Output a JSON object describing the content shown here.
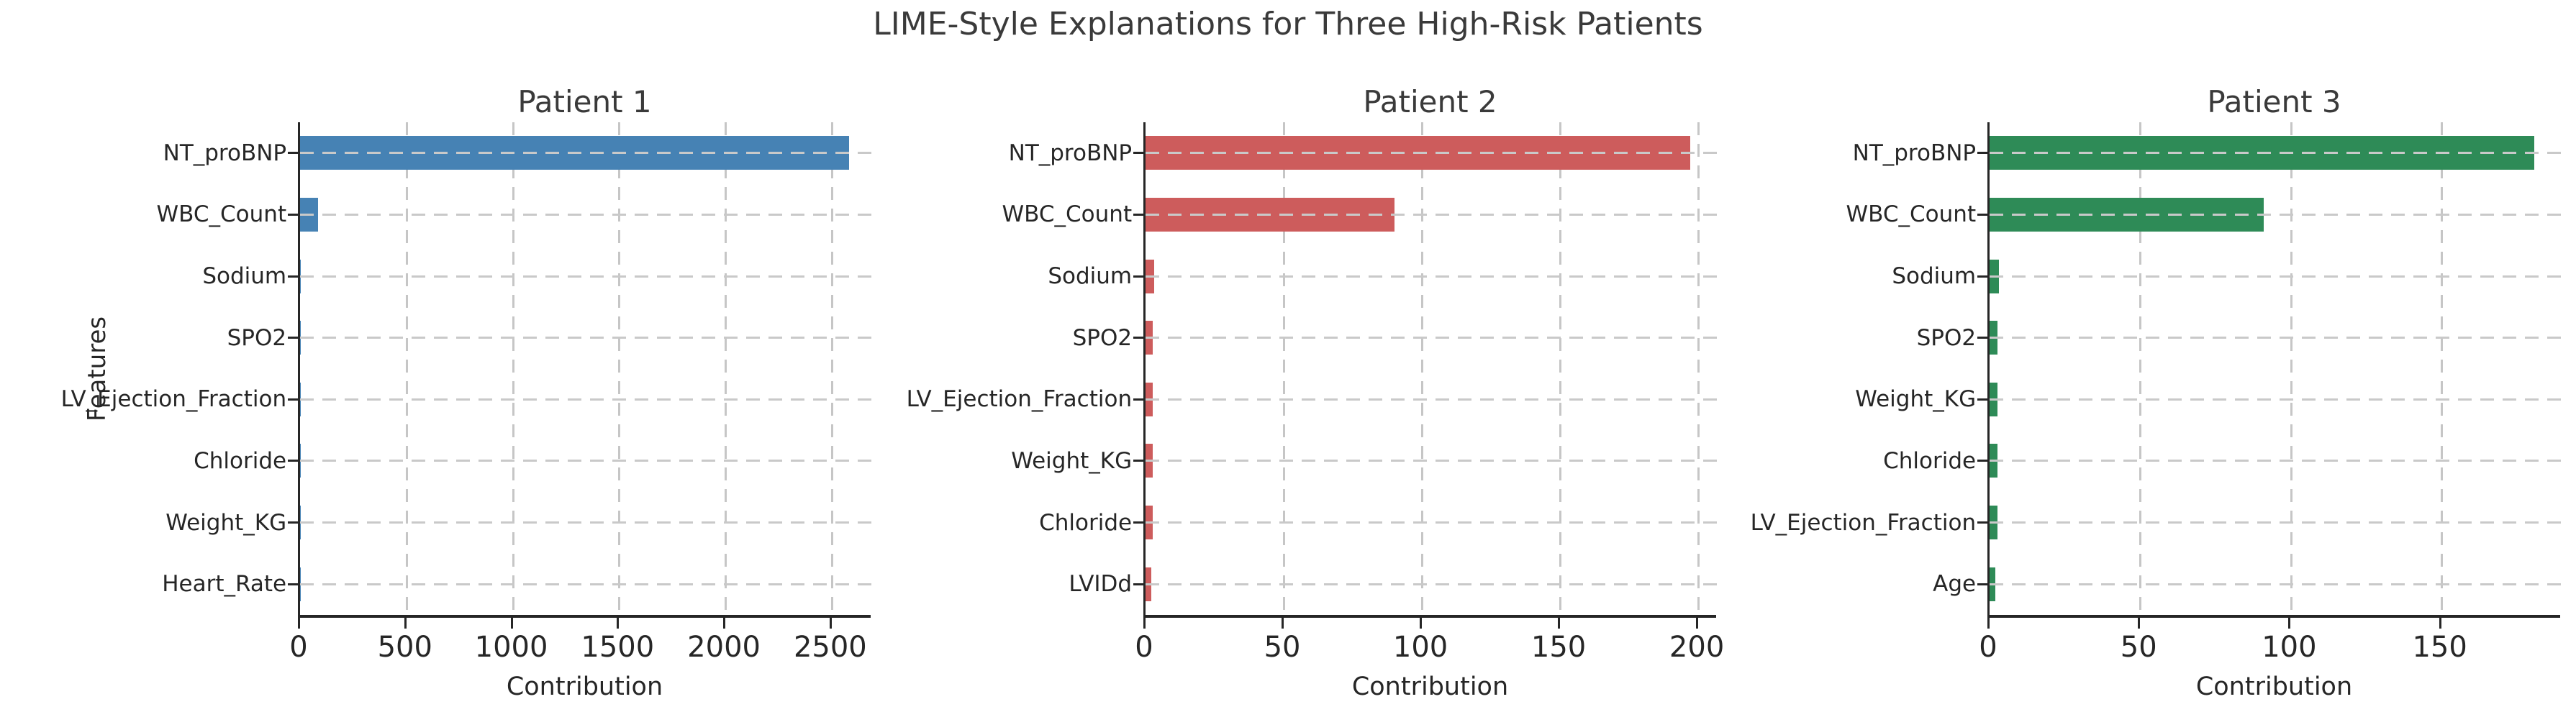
{
  "figure": {
    "suptitle": "LIME-Style Explanations for Three High-Risk Patients",
    "background_color": "#ffffff",
    "text_color": "#262626",
    "grid_color": "#c7c7c7",
    "spine_color": "#262626"
  },
  "chart_data": [
    {
      "type": "bar",
      "orientation": "horizontal",
      "title": "Patient 1",
      "bar_color": "#4682b4",
      "bar_color_name": "steelblue",
      "categories": [
        "NT_proBNP",
        "WBC_Count",
        "Sodium",
        "SPO2",
        "LV_Ejection_Fraction",
        "Chloride",
        "Weight_KG",
        "Heart_Rate"
      ],
      "values": [
        2580,
        85,
        4,
        3,
        2.5,
        2,
        1.5,
        1
      ],
      "xlabel": "Contribution",
      "ylabel": "Features",
      "xlim": [
        0,
        2690
      ],
      "xticks": [
        0,
        500,
        1000,
        1500,
        2000,
        2500
      ],
      "grid": true,
      "grid_style": "dashed",
      "legend": false
    },
    {
      "type": "bar",
      "orientation": "horizontal",
      "title": "Patient 2",
      "bar_color": "#cd5c5c",
      "bar_color_name": "indianred",
      "categories": [
        "NT_proBNP",
        "WBC_Count",
        "Sodium",
        "SPO2",
        "LV_Ejection_Fraction",
        "Weight_KG",
        "Chloride",
        "LVIDd"
      ],
      "values": [
        197,
        90,
        3,
        2.5,
        2.5,
        2.5,
        2.5,
        2
      ],
      "xlabel": "Contribution",
      "ylabel": "",
      "xlim": [
        0,
        207
      ],
      "xticks": [
        0,
        50,
        100,
        150,
        200
      ],
      "grid": true,
      "grid_style": "dashed",
      "legend": false
    },
    {
      "type": "bar",
      "orientation": "horizontal",
      "title": "Patient 3",
      "bar_color": "#2e8b57",
      "bar_color_name": "seagreen",
      "categories": [
        "NT_proBNP",
        "WBC_Count",
        "Sodium",
        "SPO2",
        "Weight_KG",
        "Chloride",
        "LV_Ejection_Fraction",
        "Age"
      ],
      "values": [
        181,
        91,
        3,
        2.5,
        2.5,
        2.5,
        2.5,
        2
      ],
      "xlabel": "Contribution",
      "ylabel": "",
      "xlim": [
        0,
        190
      ],
      "xticks": [
        0,
        50,
        100,
        150
      ],
      "grid": true,
      "grid_style": "dashed",
      "legend": false
    }
  ]
}
